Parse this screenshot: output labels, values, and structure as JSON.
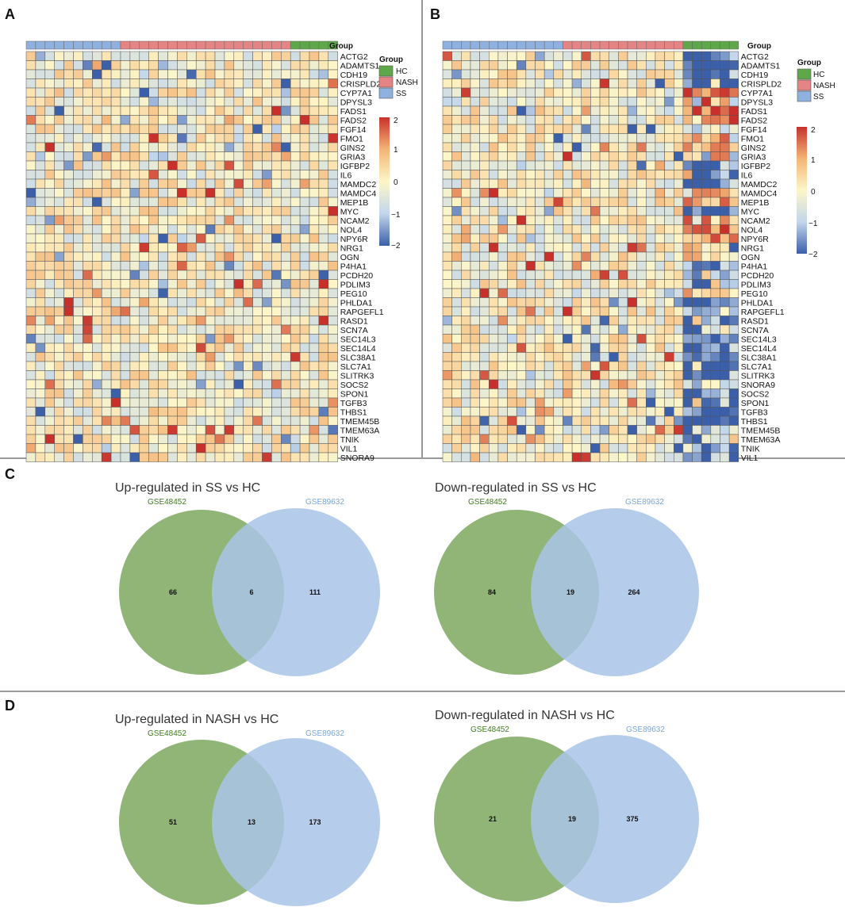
{
  "panels": {
    "a": "A",
    "b": "B",
    "c": "C",
    "d": "D"
  },
  "colors": {
    "hc": "#5fa84a",
    "nash": "#e58484",
    "ss": "#8fb1e0",
    "venn_green": "#7ea85e",
    "venn_blue": "#a8c4e8",
    "scale": [
      "#3b5fa8",
      "#c2d6ec",
      "#fdf6c8",
      "#f4b477",
      "#c8312b"
    ]
  },
  "heatmap_a": {
    "group_label": "Group",
    "legend": {
      "title": "Group",
      "items": [
        "HC",
        "NASH",
        "SS"
      ]
    },
    "scale_ticks": [
      "2",
      "1",
      "0",
      "−1",
      "−2"
    ],
    "genes": [
      "ACTG2",
      "ADAMTS1",
      "CDH19",
      "CRISPLD2",
      "CYP7A1",
      "DPYSL3",
      "FADS1",
      "FADS2",
      "FGF14",
      "FMO1",
      "GINS2",
      "GRIA3",
      "IGFBP2",
      "IL6",
      "MAMDC2",
      "MAMDC4",
      "MEP1B",
      "MYC",
      "NCAM2",
      "NOL4",
      "NPY6R",
      "NRG1",
      "OGN",
      "P4HA1",
      "PCDH20",
      "PDLIM3",
      "PEG10",
      "PHLDA1",
      "RAPGEFL1",
      "RASD1",
      "SCN7A",
      "SEC14L3",
      "SEC14L4",
      "SLC38A1",
      "SLC7A1",
      "SLITRK3",
      "SOCS2",
      "SPON1",
      "TGFB3",
      "THBS1",
      "TMEM45B",
      "TMEM63A",
      "TNIK",
      "VIL1",
      "SNORA9"
    ]
  },
  "heatmap_b": {
    "group_label": "Group",
    "legend": {
      "title": "Group",
      "items": [
        "HC",
        "NASH",
        "SS"
      ]
    },
    "scale_ticks": [
      "2",
      "1",
      "0",
      "−1",
      "−2"
    ],
    "genes": [
      "ACTG2",
      "ADAMTS1",
      "CDH19",
      "CRISPLD2",
      "CYP7A1",
      "DPYSL3",
      "FADS1",
      "FADS2",
      "FGF14",
      "FMO1",
      "GINS2",
      "GRIA3",
      "IGFBP2",
      "IL6",
      "MAMDC2",
      "MAMDC4",
      "MEP1B",
      "MYC",
      "NCAM2",
      "NOL4",
      "NPY6R",
      "NRG1",
      "OGN",
      "P4HA1",
      "PCDH20",
      "PDLIM3",
      "PEG10",
      "PHLDA1",
      "RAPGEFL1",
      "RASD1",
      "SCN7A",
      "SEC14L3",
      "SEC14L4",
      "SLC38A1",
      "SLC7A1",
      "SLITRK3",
      "SNORA9",
      "SOCS2",
      "SPON1",
      "TGFB3",
      "THBS1",
      "TMEM45B",
      "TMEM63A",
      "TNIK",
      "VIL1"
    ]
  },
  "venns": [
    {
      "title": "Up-regulated in SS vs HC",
      "left_label": "GSE48452",
      "right_label": "GSE89632",
      "left_only": "66",
      "overlap": "6",
      "right_only": "111"
    },
    {
      "title": "Down-regulated in SS vs HC",
      "left_label": "GSE48452",
      "right_label": "GSE89632",
      "left_only": "84",
      "overlap": "19",
      "right_only": "264"
    },
    {
      "title": "Up-regulated in NASH vs HC",
      "left_label": "GSE48452",
      "right_label": "GSE89632",
      "left_only": "51",
      "overlap": "13",
      "right_only": "173"
    },
    {
      "title": "Down-regulated in NASH vs HC",
      "left_label": "GSE48452",
      "right_label": "GSE89632",
      "left_only": "21",
      "overlap": "19",
      "right_only": "375"
    }
  ]
}
